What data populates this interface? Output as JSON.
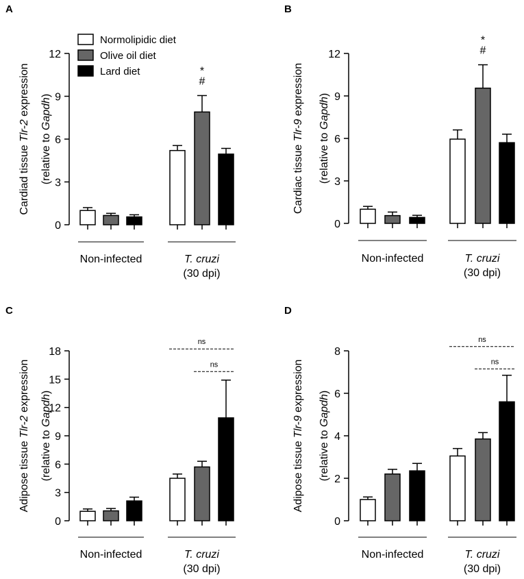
{
  "legend": {
    "items": [
      {
        "label": "Normolipidic diet",
        "color": "#ffffff"
      },
      {
        "label": "Olive oil diet",
        "color": "#666666"
      },
      {
        "label": "Lard diet",
        "color": "#000000"
      }
    ]
  },
  "colors": {
    "normolipidic": "#ffffff",
    "olive": "#666666",
    "lard": "#000000",
    "stroke": "#000000"
  },
  "chart_data": [
    {
      "panel": "A",
      "type": "bar",
      "ylabel_main": "Cardiad tissue ",
      "ylabel_gene": "Tlr-2",
      "ylabel_tail": " expression",
      "ylabel2_pre": "(relative to ",
      "ylabel2_gene": "Gapdh",
      "ylabel2_post": ")",
      "ylim": [
        0,
        12
      ],
      "yticks": [
        0,
        3,
        6,
        9,
        12
      ],
      "ytick_labels": [
        "0",
        "3",
        "6",
        "9",
        "12"
      ],
      "categories": [
        "Non-infected",
        "T. cruzi"
      ],
      "category_sub": [
        "",
        "(30 dpi)"
      ],
      "series": [
        {
          "name": "Normolipidic diet",
          "values": [
            1.0,
            5.2
          ],
          "errors": [
            0.2,
            0.35
          ]
        },
        {
          "name": "Olive oil diet",
          "values": [
            0.65,
            7.9
          ],
          "errors": [
            0.15,
            1.15
          ]
        },
        {
          "name": "Lard diet",
          "values": [
            0.55,
            4.95
          ],
          "errors": [
            0.15,
            0.4
          ]
        }
      ],
      "annotations": [
        {
          "category": 1,
          "series": 1,
          "symbols": [
            "*",
            "#"
          ]
        }
      ],
      "ns_lines": []
    },
    {
      "panel": "B",
      "type": "bar",
      "ylabel_main": "Cardiac tissue ",
      "ylabel_gene": "Tlr-9",
      "ylabel_tail": " expression",
      "ylabel2_pre": "(relative to ",
      "ylabel2_gene": "Gapdh",
      "ylabel2_post": ")",
      "ylim": [
        0,
        12
      ],
      "yticks": [
        0,
        3,
        6,
        9,
        12
      ],
      "ytick_labels": [
        "0",
        "3",
        "6",
        "9",
        "12"
      ],
      "categories": [
        "Non-infected",
        "T. cruzi"
      ],
      "category_sub": [
        "",
        "(30 dpi)"
      ],
      "series": [
        {
          "name": "Normolipidic diet",
          "values": [
            1.0,
            5.95
          ],
          "errors": [
            0.2,
            0.65
          ]
        },
        {
          "name": "Olive oil diet",
          "values": [
            0.55,
            9.55
          ],
          "errors": [
            0.25,
            1.65
          ]
        },
        {
          "name": "Lard diet",
          "values": [
            0.42,
            5.7
          ],
          "errors": [
            0.15,
            0.6
          ]
        }
      ],
      "annotations": [
        {
          "category": 1,
          "series": 1,
          "symbols": [
            "*",
            "#"
          ]
        }
      ],
      "ns_lines": []
    },
    {
      "panel": "C",
      "type": "bar",
      "ylabel_main": "Adipose tissue ",
      "ylabel_gene": "Tlr-2",
      "ylabel_tail": " expression",
      "ylabel2_pre": "(relative to ",
      "ylabel2_gene": "Gapdh",
      "ylabel2_post": ")",
      "ylim": [
        0,
        18
      ],
      "yticks": [
        0,
        3,
        6,
        9,
        12,
        15,
        18
      ],
      "ytick_labels": [
        "0",
        "3",
        "6",
        "9",
        "12",
        "15",
        "18"
      ],
      "categories": [
        "Non-infected",
        "T. cruzi"
      ],
      "category_sub": [
        "",
        "(30 dpi)"
      ],
      "series": [
        {
          "name": "Normolipidic diet",
          "values": [
            1.0,
            4.5
          ],
          "errors": [
            0.25,
            0.45
          ]
        },
        {
          "name": "Olive oil diet",
          "values": [
            1.05,
            5.7
          ],
          "errors": [
            0.25,
            0.6
          ]
        },
        {
          "name": "Lard diet",
          "values": [
            2.1,
            10.9
          ],
          "errors": [
            0.4,
            4.0
          ]
        }
      ],
      "annotations": [],
      "ns_lines": [
        {
          "label": "ns",
          "from": 0,
          "to": 2,
          "level": 18.2
        },
        {
          "label": "ns",
          "from": 1,
          "to": 2,
          "level": 15.8
        }
      ]
    },
    {
      "panel": "D",
      "type": "bar",
      "ylabel_main": "Adipose tissue ",
      "ylabel_gene": "Tlr-9",
      "ylabel_tail": " expression",
      "ylabel2_pre": "(relative to ",
      "ylabel2_gene": "Gapdh",
      "ylabel2_post": ")",
      "ylim": [
        0,
        8
      ],
      "yticks": [
        0,
        2,
        4,
        6,
        8
      ],
      "ytick_labels": [
        "0",
        "2",
        "4",
        "6",
        "8"
      ],
      "categories": [
        "Non-infected",
        "T. cruzi"
      ],
      "category_sub": [
        "",
        "(30 dpi)"
      ],
      "series": [
        {
          "name": "Normolipidic diet",
          "values": [
            1.0,
            3.05
          ],
          "errors": [
            0.12,
            0.35
          ]
        },
        {
          "name": "Olive oil diet",
          "values": [
            2.2,
            3.85
          ],
          "errors": [
            0.22,
            0.3
          ]
        },
        {
          "name": "Lard diet",
          "values": [
            2.35,
            5.6
          ],
          "errors": [
            0.35,
            1.25
          ]
        }
      ],
      "annotations": [],
      "ns_lines": [
        {
          "label": "ns",
          "from": 0,
          "to": 2,
          "level": 8.2
        },
        {
          "label": "ns",
          "from": 1,
          "to": 2,
          "level": 7.15
        }
      ]
    }
  ]
}
